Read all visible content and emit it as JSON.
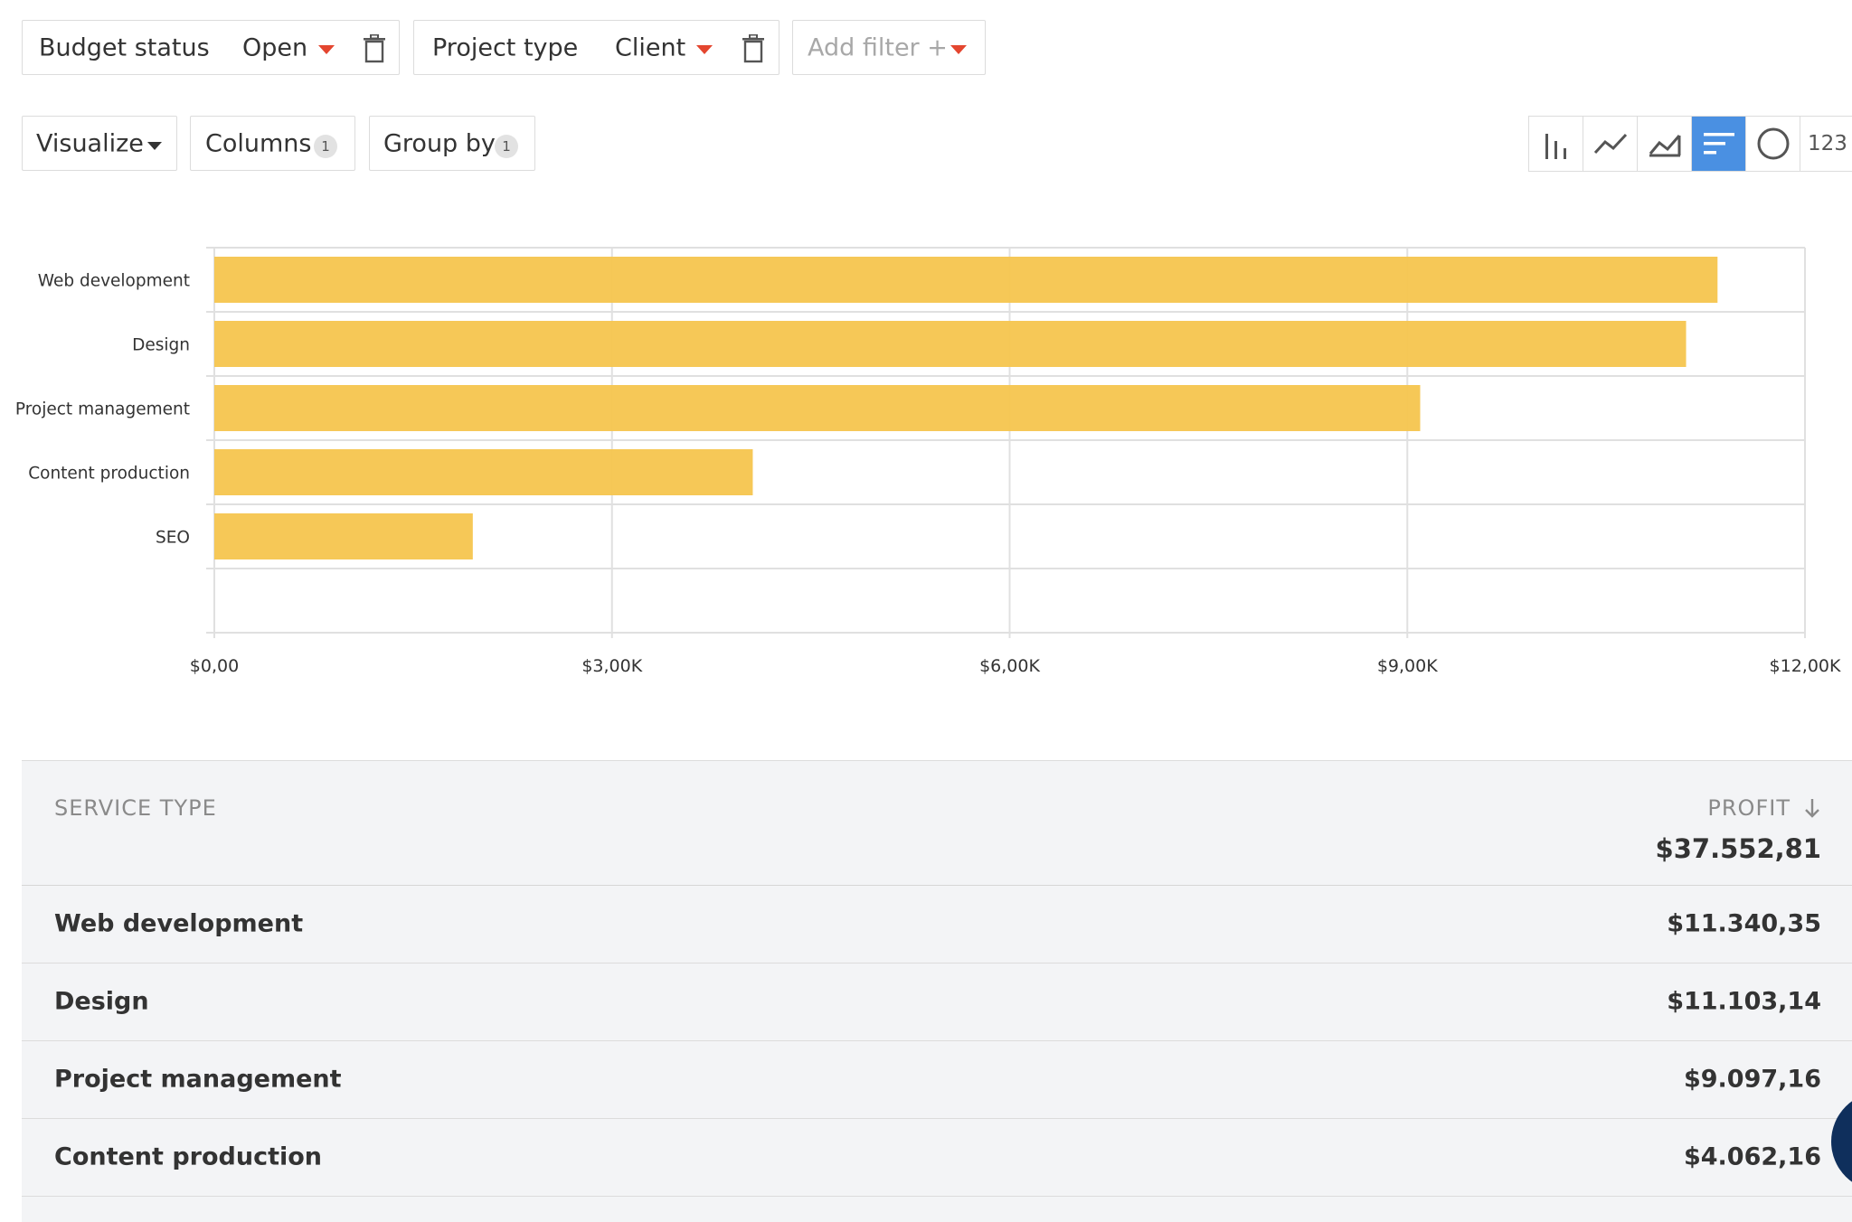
{
  "filters": [
    {
      "label": "Budget status",
      "value": "Open"
    },
    {
      "label": "Project type",
      "value": "Client"
    }
  ],
  "add_filter": {
    "label": "Add filter +"
  },
  "toolbar": {
    "visualize": "Visualize",
    "columns": {
      "label": "Columns",
      "count": "1"
    },
    "group_by": {
      "label": "Group by",
      "count": "1"
    }
  },
  "viz_switcher": {
    "buttons": [
      "column-chart-icon",
      "line-chart-icon",
      "area-chart-icon",
      "bar-chart-icon",
      "pie-chart-icon"
    ],
    "active": "bar-chart-icon",
    "number_label": "123"
  },
  "chart_data": {
    "type": "bar",
    "orientation": "horizontal",
    "categories": [
      "Web development",
      "Design",
      "Project management",
      "Content production",
      "SEO"
    ],
    "values": [
      11340.35,
      11103.14,
      9097.16,
      4062.16,
      1950
    ],
    "xlim": [
      0,
      12000
    ],
    "x_ticks": [
      0,
      3000,
      6000,
      9000,
      12000
    ],
    "x_tick_labels": [
      "$0,00",
      "$3,00K",
      "$6,00K",
      "$9,00K",
      "$12,00K"
    ],
    "bar_color": "#f6c54e",
    "grid": true
  },
  "table": {
    "col1_header": "SERVICE TYPE",
    "col2_header": "PROFIT",
    "total": "$37.552,81",
    "rows": [
      {
        "name": "Web development",
        "value": "$11.340,35"
      },
      {
        "name": "Design",
        "value": "$11.103,14"
      },
      {
        "name": "Project management",
        "value": "$9.097,16"
      },
      {
        "name": "Content production",
        "value": "$4.062,16"
      }
    ]
  }
}
